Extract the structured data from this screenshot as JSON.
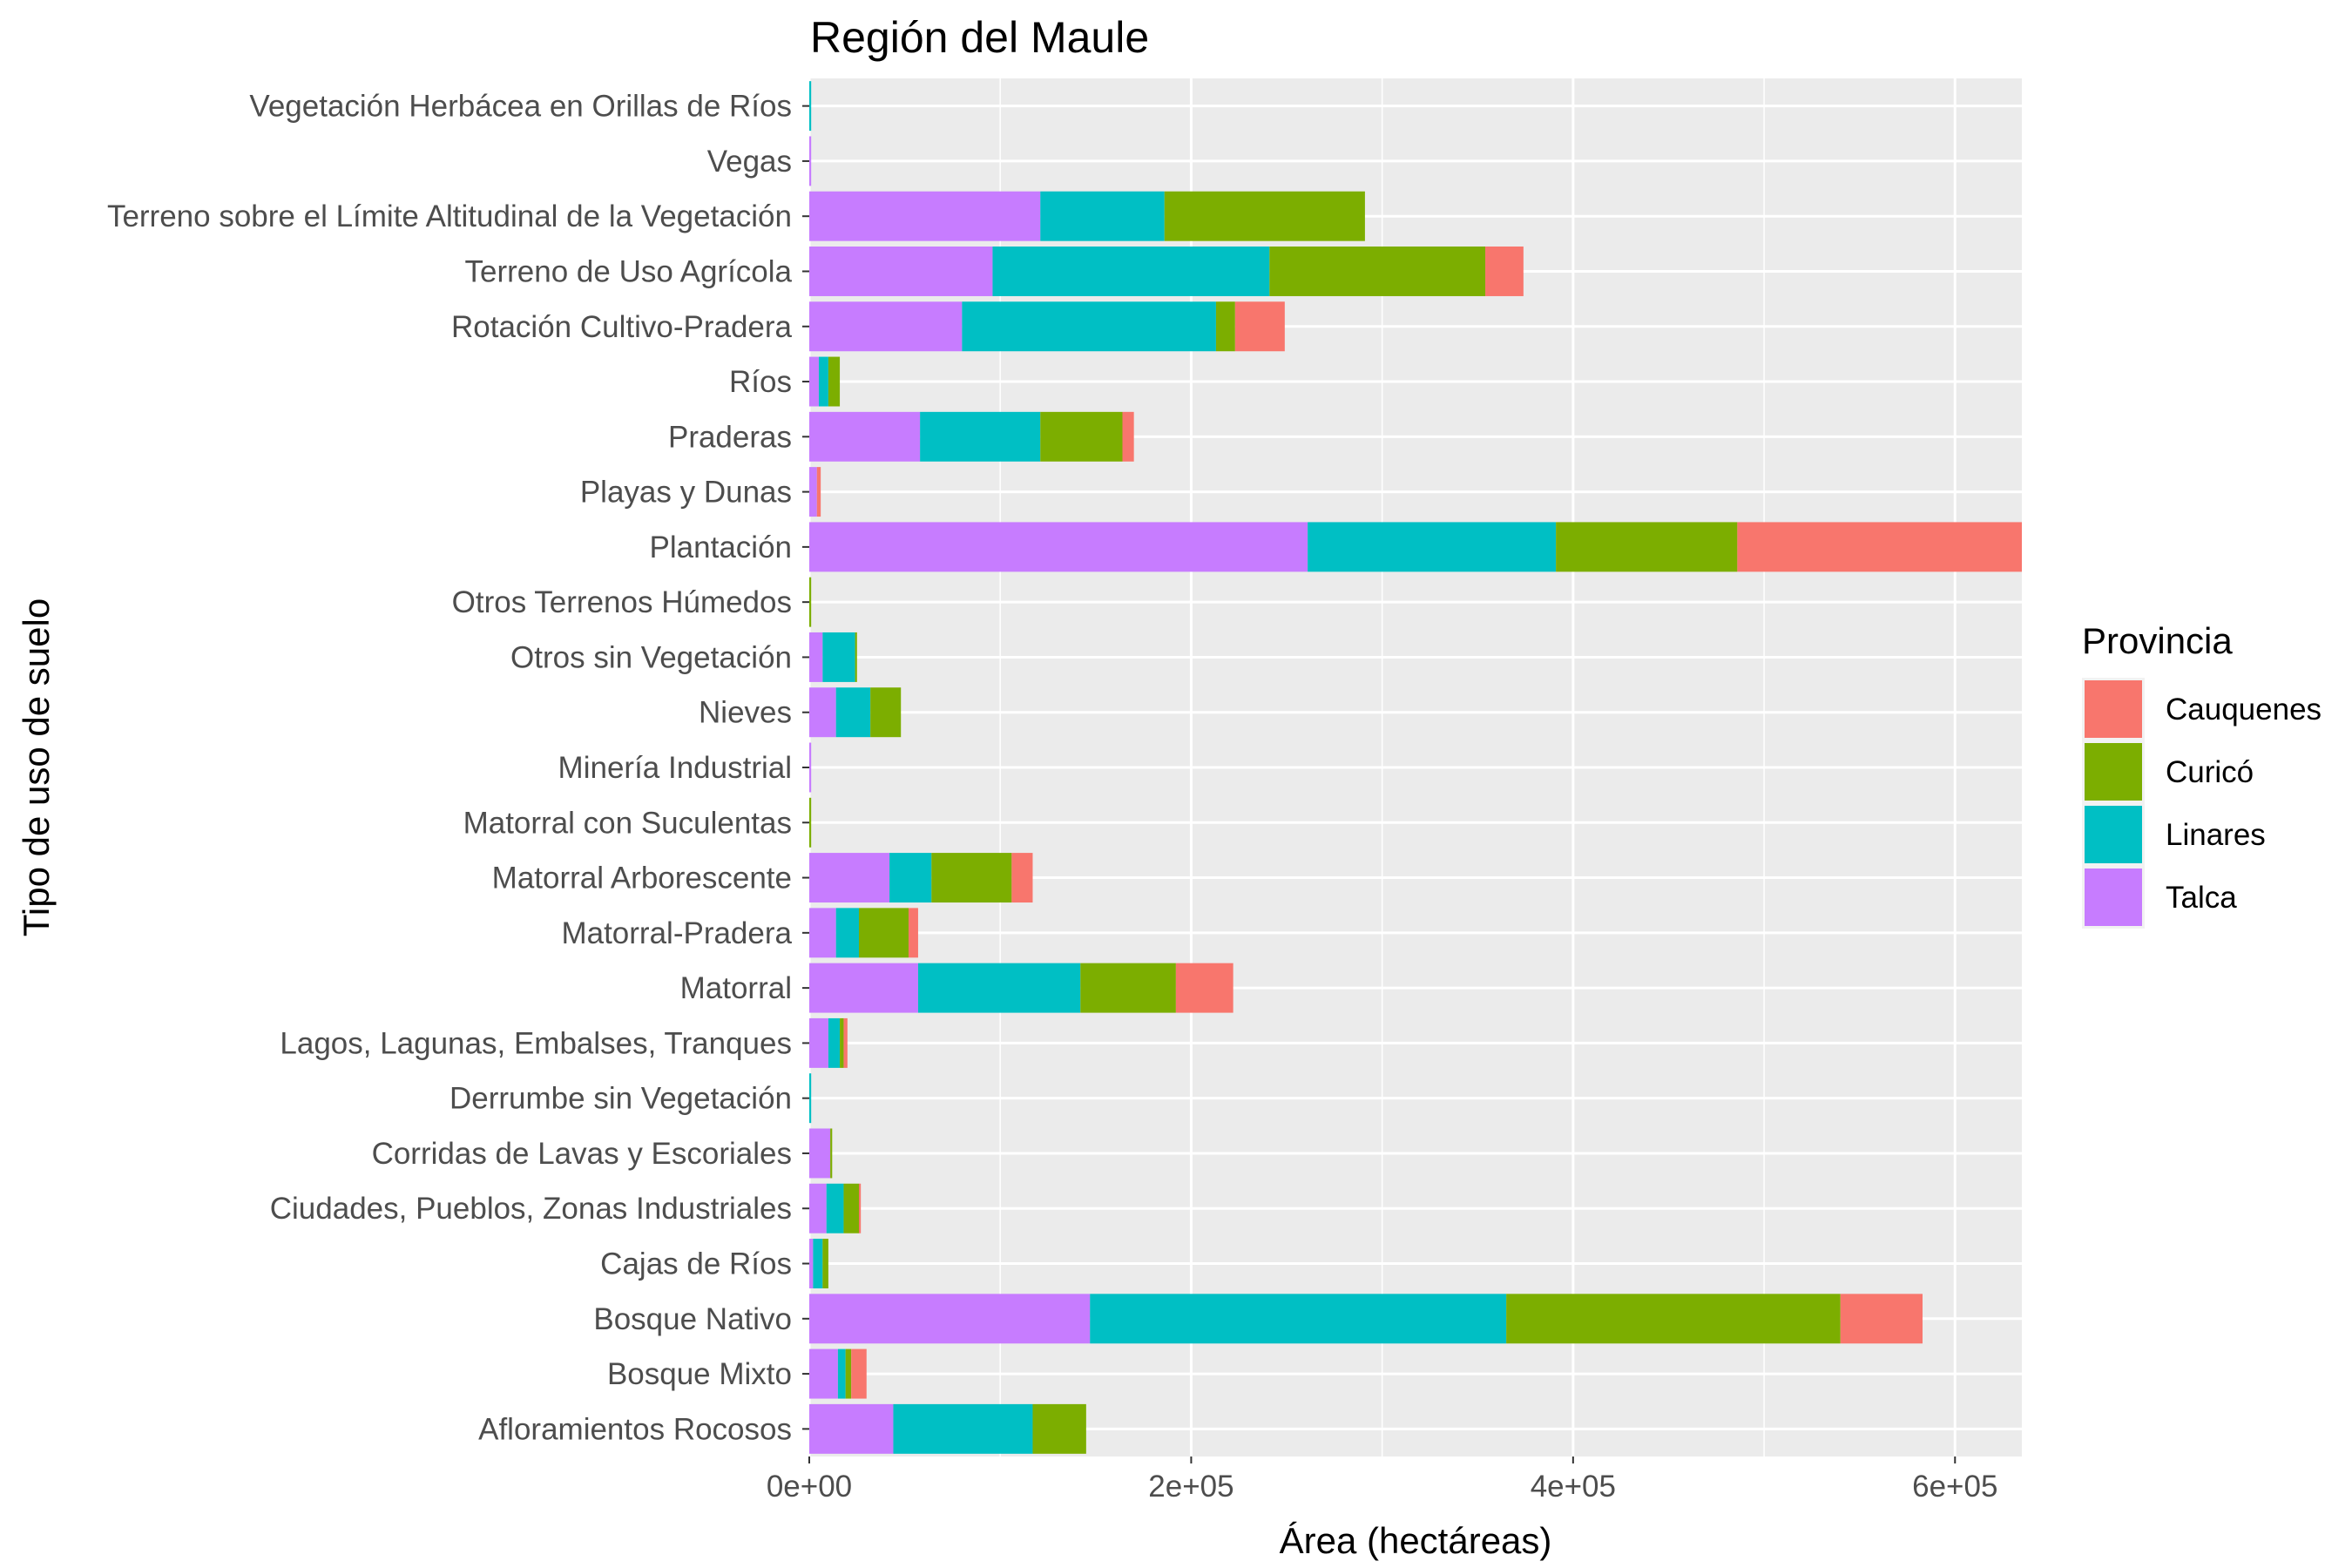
{
  "chart_data": {
    "type": "bar",
    "orientation": "horizontal",
    "stacked": true,
    "title": "Región del Maule",
    "xlabel": "Área (hectáreas)",
    "ylabel": "Tipo de uso de suelo",
    "xlim": [
      0,
      635000
    ],
    "xticks": [
      0,
      200000,
      400000,
      600000
    ],
    "xtick_labels": [
      "0e+00",
      "2e+05",
      "4e+05",
      "6e+05"
    ],
    "grid": true,
    "legend": {
      "title": "Provincia",
      "position": "right"
    },
    "categories": [
      "Afloramientos Rocosos",
      "Bosque Mixto",
      "Bosque Nativo",
      "Cajas de Ríos",
      "Ciudades, Pueblos, Zonas Industriales",
      "Corridas de Lavas y Escoriales",
      "Derrumbe sin Vegetación",
      "Lagos, Lagunas, Embalses, Tranques",
      "Matorral",
      "Matorral-Pradera",
      "Matorral Arborescente",
      "Matorral con Suculentas",
      "Minería Industrial",
      "Nieves",
      "Otros sin Vegetación",
      "Otros Terrenos Húmedos",
      "Plantación",
      "Playas y Dunas",
      "Praderas",
      "Ríos",
      "Rotación Cultivo-Pradera",
      "Terreno de Uso Agrícola",
      "Terreno sobre el Límite Altitudinal de la Vegetación",
      "Vegas",
      "Vegetación Herbácea en Orillas de Ríos"
    ],
    "stack_order": [
      "Talca",
      "Linares",
      "Curicó",
      "Cauquenes"
    ],
    "series": [
      {
        "name": "Cauquenes",
        "color": "#F8766D",
        "values": [
          0,
          8000,
          43000,
          0,
          1000,
          0,
          0,
          2000,
          30000,
          5000,
          11000,
          0,
          0,
          0,
          0,
          0,
          150000,
          2000,
          6000,
          0,
          26000,
          20000,
          0,
          0,
          0
        ]
      },
      {
        "name": "Curicó",
        "color": "#7CAE00",
        "values": [
          28000,
          3000,
          175000,
          3000,
          8000,
          1000,
          0,
          2000,
          50000,
          26000,
          42000,
          1000,
          0,
          16000,
          1000,
          1000,
          95000,
          0,
          43000,
          6000,
          10000,
          113000,
          105000,
          0,
          0
        ]
      },
      {
        "name": "Linares",
        "color": "#00BFC4",
        "values": [
          73000,
          4000,
          218000,
          5000,
          9000,
          0,
          1000,
          6000,
          85000,
          12000,
          22000,
          0,
          0,
          18000,
          17000,
          0,
          130000,
          0,
          63000,
          5000,
          133000,
          145000,
          65000,
          0,
          1000
        ]
      },
      {
        "name": "Talca",
        "color": "#C77CFF",
        "values": [
          44000,
          15000,
          147000,
          2000,
          9000,
          11000,
          0,
          10000,
          57000,
          14000,
          42000,
          0,
          1000,
          14000,
          7000,
          0,
          261000,
          4000,
          58000,
          5000,
          80000,
          96000,
          121000,
          1000,
          0
        ]
      }
    ]
  }
}
